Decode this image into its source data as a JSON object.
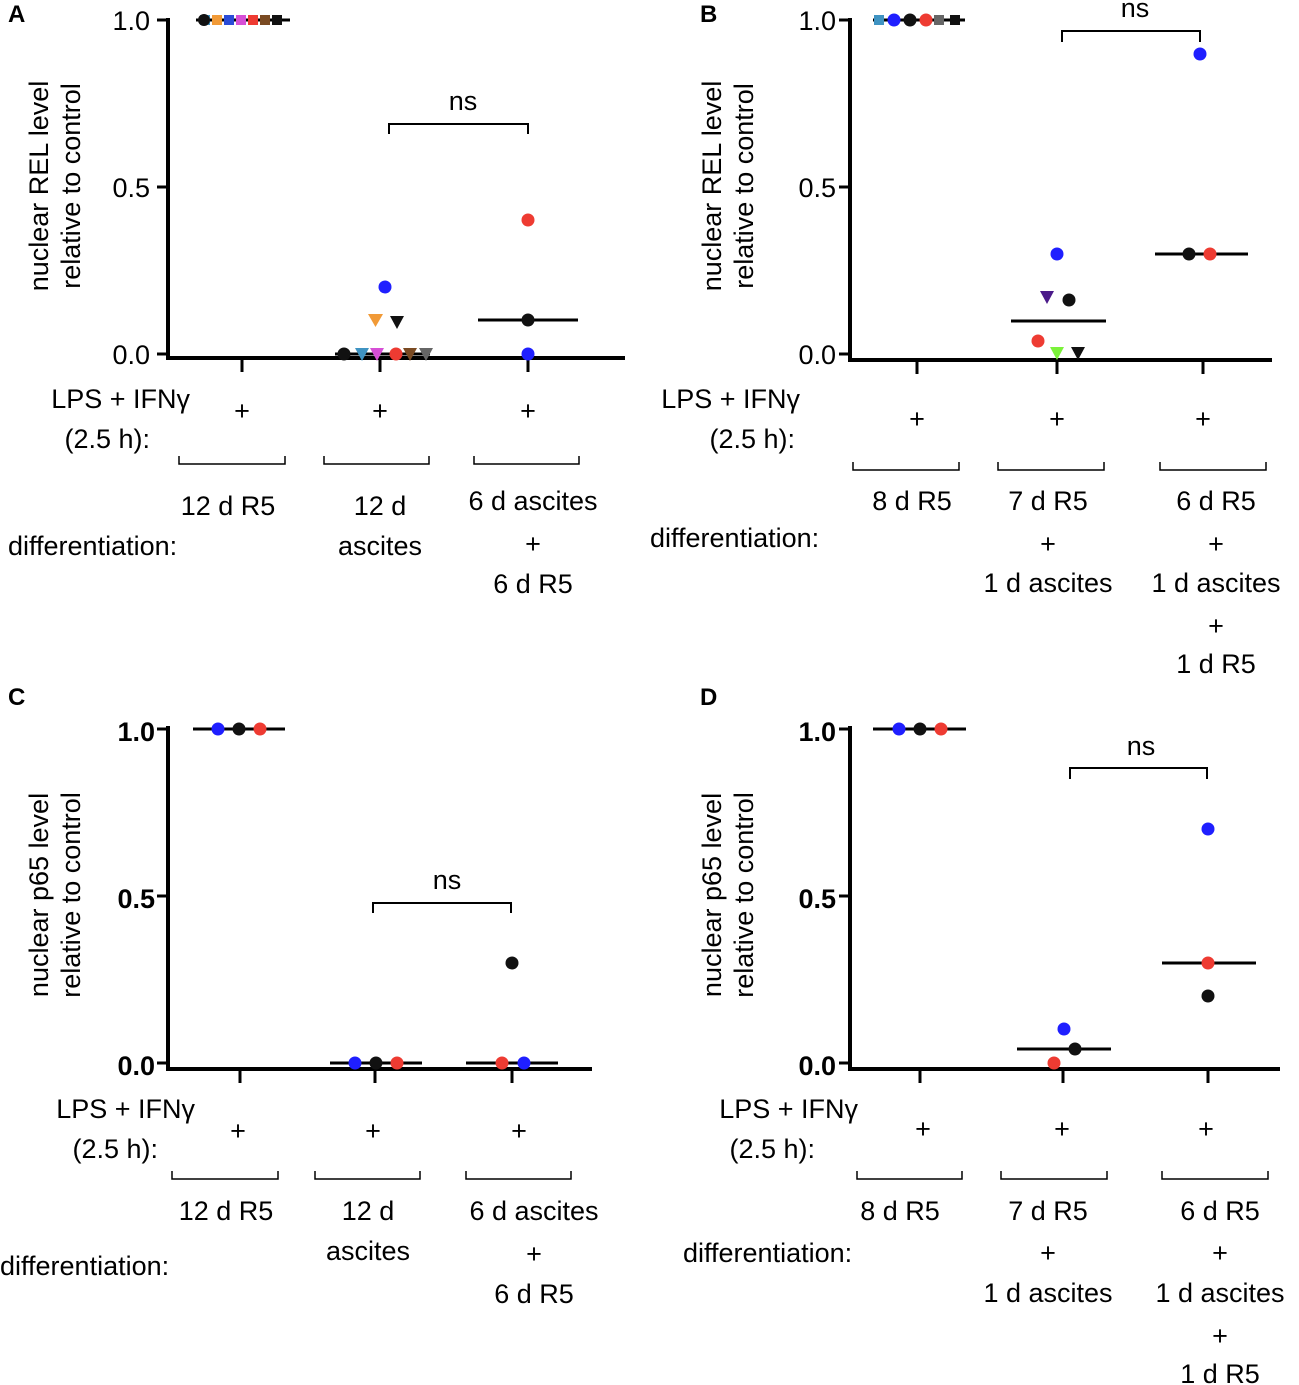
{
  "chart_data": [
    {
      "panel": "A",
      "type": "scatter",
      "ylabel": [
        "nuclear REL level",
        "relative to control"
      ],
      "ylim": [
        0,
        1
      ],
      "yticks": [
        "0.0",
        "0.5",
        "1.0"
      ],
      "row_labels": {
        "treatment": [
          "LPS + IFNγ",
          "(2.5 h):"
        ],
        "differentiation": "differentiation:"
      },
      "groups": [
        {
          "treatment": "+",
          "differentiation": [
            "12 d R5"
          ],
          "median": 1.0,
          "points": [
            {
              "y": 1.0,
              "color": "#3f93c2",
              "shape": "square"
            },
            {
              "y": 1.0,
              "color": "#f19a37",
              "shape": "square"
            },
            {
              "y": 1.0,
              "color": "#2a4bd7",
              "shape": "square"
            },
            {
              "y": 1.0,
              "color": "#d64fd6",
              "shape": "square"
            },
            {
              "y": 1.0,
              "color": "#ee3b32",
              "shape": "square"
            },
            {
              "y": 1.0,
              "color": "#7a4a22",
              "shape": "square"
            },
            {
              "y": 1.0,
              "color": "#111111",
              "shape": "square"
            },
            {
              "y": 1.0,
              "color": "#111111",
              "shape": "circle"
            }
          ]
        },
        {
          "treatment": "+",
          "differentiation": [
            "12 d",
            "ascites"
          ],
          "median": 0.0,
          "points": [
            {
              "y": 0.0,
              "color": "#111111",
              "shape": "circle"
            },
            {
              "y": 0.0,
              "color": "#3f93c2",
              "shape": "triangle-down"
            },
            {
              "y": 0.0,
              "color": "#d64fd6",
              "shape": "triangle-down"
            },
            {
              "y": 0.2,
              "color": "#1f1fff",
              "shape": "circle"
            },
            {
              "y": 0.1,
              "color": "#f19a37",
              "shape": "triangle-down"
            },
            {
              "y": 0.0,
              "color": "#ee3b32",
              "shape": "circle"
            },
            {
              "y": 0.095,
              "color": "#111111",
              "shape": "triangle-down"
            },
            {
              "y": 0.0,
              "color": "#7a4a22",
              "shape": "triangle-down"
            },
            {
              "y": 0.0,
              "color": "#666666",
              "shape": "triangle-down"
            }
          ]
        },
        {
          "treatment": "+",
          "differentiation": [
            "6 d ascites",
            "+",
            "6 d R5"
          ],
          "median": 0.1,
          "points": [
            {
              "y": 0.4,
              "color": "#ee3b32",
              "shape": "circle"
            },
            {
              "y": 0.1,
              "color": "#111111",
              "shape": "circle"
            },
            {
              "y": 0.0,
              "color": "#1f1fff",
              "shape": "circle"
            }
          ]
        }
      ],
      "significance": {
        "label": "ns",
        "from_group": 2,
        "to_group": 3
      }
    },
    {
      "panel": "B",
      "type": "scatter",
      "ylabel": [
        "nuclear REL level",
        "relative to control"
      ],
      "ylim": [
        0,
        1
      ],
      "yticks": [
        "0.0",
        "0.5",
        "1.0"
      ],
      "row_labels": {
        "treatment": [
          "LPS + IFNγ",
          "(2.5 h):"
        ],
        "differentiation": "differentiation:"
      },
      "groups": [
        {
          "treatment": "+",
          "differentiation": [
            "8 d R5"
          ],
          "median": 1.0,
          "points": [
            {
              "y": 1.0,
              "color": "#3f93c2",
              "shape": "square"
            },
            {
              "y": 1.0,
              "color": "#1f1fff",
              "shape": "circle"
            },
            {
              "y": 1.0,
              "color": "#ee3b32",
              "shape": "circle"
            },
            {
              "y": 1.0,
              "color": "#111111",
              "shape": "circle"
            },
            {
              "y": 1.0,
              "color": "#666666",
              "shape": "square"
            },
            {
              "y": 1.0,
              "color": "#111111",
              "shape": "square"
            }
          ]
        },
        {
          "treatment": "+",
          "differentiation": [
            "7 d R5",
            "+",
            "1 d ascites"
          ],
          "median": 0.1,
          "points": [
            {
              "y": 0.04,
              "color": "#ee3b32",
              "shape": "circle"
            },
            {
              "y": 0.17,
              "color": "#4b1a8a",
              "shape": "triangle-down"
            },
            {
              "y": 0.0,
              "color": "#7bf23a",
              "shape": "triangle-down"
            },
            {
              "y": 0.3,
              "color": "#1f1fff",
              "shape": "circle"
            },
            {
              "y": 0.16,
              "color": "#111111",
              "shape": "circle"
            },
            {
              "y": 0.0,
              "color": "#111111",
              "shape": "triangle-down"
            }
          ]
        },
        {
          "treatment": "+",
          "differentiation": [
            "6 d R5",
            "+",
            "1 d ascites",
            "+",
            "1 d R5"
          ],
          "median": 0.3,
          "points": [
            {
              "y": 0.9,
              "color": "#1f1fff",
              "shape": "circle"
            },
            {
              "y": 0.3,
              "color": "#111111",
              "shape": "circle"
            },
            {
              "y": 0.3,
              "color": "#ee3b32",
              "shape": "circle"
            }
          ]
        }
      ],
      "significance": {
        "label": "ns",
        "from_group": 2,
        "to_group": 3
      }
    },
    {
      "panel": "C",
      "type": "scatter",
      "ylabel": [
        "nuclear p65 level",
        "relative to control"
      ],
      "ylim": [
        0,
        1
      ],
      "yticks": [
        "0.0",
        "0.5",
        "1.0"
      ],
      "row_labels": {
        "treatment": [
          "LPS + IFNγ",
          "(2.5 h):"
        ],
        "differentiation": "differentiation:"
      },
      "groups": [
        {
          "treatment": "+",
          "differentiation": [
            "12 d R5"
          ],
          "median": 1.0,
          "points": [
            {
              "y": 1.0,
              "color": "#1f1fff",
              "shape": "circle"
            },
            {
              "y": 1.0,
              "color": "#111111",
              "shape": "circle"
            },
            {
              "y": 1.0,
              "color": "#ee3b32",
              "shape": "circle"
            }
          ]
        },
        {
          "treatment": "+",
          "differentiation": [
            "12 d",
            "ascites"
          ],
          "median": 0.0,
          "points": [
            {
              "y": 0.0,
              "color": "#1f1fff",
              "shape": "circle"
            },
            {
              "y": 0.0,
              "color": "#111111",
              "shape": "circle"
            },
            {
              "y": 0.0,
              "color": "#ee3b32",
              "shape": "circle"
            }
          ]
        },
        {
          "treatment": "+",
          "differentiation": [
            "6 d ascites",
            "+",
            "6 d R5"
          ],
          "median": 0.0,
          "points": [
            {
              "y": 0.0,
              "color": "#ee3b32",
              "shape": "circle"
            },
            {
              "y": 0.3,
              "color": "#111111",
              "shape": "circle"
            },
            {
              "y": 0.0,
              "color": "#1f1fff",
              "shape": "circle"
            }
          ]
        }
      ],
      "significance": {
        "label": "ns",
        "from_group": 2,
        "to_group": 3
      }
    },
    {
      "panel": "D",
      "type": "scatter",
      "ylabel": [
        "nuclear p65 level",
        "relative to control"
      ],
      "ylim": [
        0,
        1
      ],
      "yticks": [
        "0.0",
        "0.5",
        "1.0"
      ],
      "row_labels": {
        "treatment": [
          "LPS + IFNγ",
          "(2.5 h):"
        ],
        "differentiation": "differentiation:"
      },
      "groups": [
        {
          "treatment": "+",
          "differentiation": [
            "8 d R5"
          ],
          "median": 1.0,
          "points": [
            {
              "y": 1.0,
              "color": "#1f1fff",
              "shape": "circle"
            },
            {
              "y": 1.0,
              "color": "#111111",
              "shape": "circle"
            },
            {
              "y": 1.0,
              "color": "#ee3b32",
              "shape": "circle"
            }
          ]
        },
        {
          "treatment": "+",
          "differentiation": [
            "7 d R5",
            "+",
            "1 d ascites"
          ],
          "median": 0.04,
          "points": [
            {
              "y": 0.0,
              "color": "#ee3b32",
              "shape": "circle"
            },
            {
              "y": 0.1,
              "color": "#1f1fff",
              "shape": "circle"
            },
            {
              "y": 0.04,
              "color": "#111111",
              "shape": "circle"
            }
          ]
        },
        {
          "treatment": "+",
          "differentiation": [
            "6 d R5",
            "+",
            "1 d ascites",
            "+",
            "1 d R5"
          ],
          "median": 0.3,
          "points": [
            {
              "y": 0.7,
              "color": "#1f1fff",
              "shape": "circle"
            },
            {
              "y": 0.3,
              "color": "#ee3b32",
              "shape": "circle"
            },
            {
              "y": 0.2,
              "color": "#111111",
              "shape": "circle"
            }
          ]
        }
      ],
      "significance": {
        "label": "ns",
        "from_group": 2,
        "to_group": 3
      }
    }
  ]
}
